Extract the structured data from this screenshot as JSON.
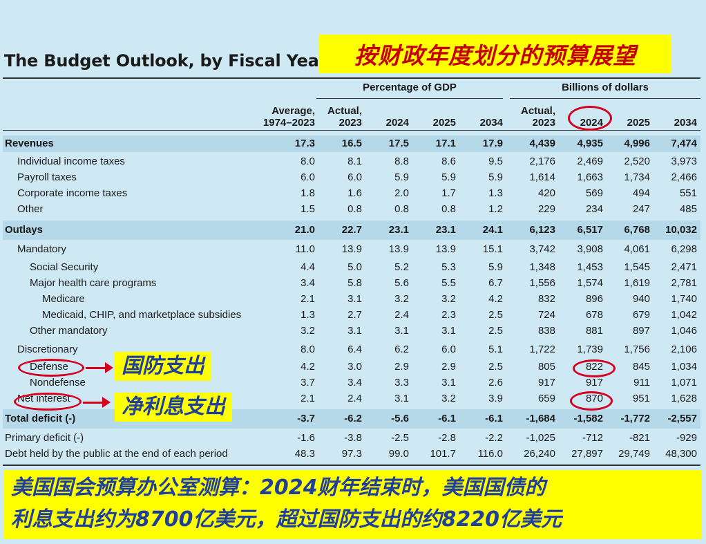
{
  "title": "The Budget Outlook, by Fiscal Year",
  "cn_title": "按财政年度划分的预算展望",
  "headers": {
    "group_gdp": "Percentage of GDP",
    "group_dollars": "Billions of dollars",
    "columns": [
      [
        "Average,",
        "1974–2023"
      ],
      [
        "Actual,",
        "2023"
      ],
      [
        "",
        "2024"
      ],
      [
        "",
        "2025"
      ],
      [
        "",
        "2034"
      ],
      [
        "Actual,",
        "2023"
      ],
      [
        "",
        "2024"
      ],
      [
        "",
        "2025"
      ],
      [
        "",
        "2034"
      ]
    ]
  },
  "rows": [
    {
      "label": "Revenues",
      "bold": true,
      "indent": 0,
      "values": [
        "17.3",
        "16.5",
        "17.5",
        "17.1",
        "17.9",
        "4,439",
        "4,935",
        "4,996",
        "7,474"
      ]
    },
    {
      "label": "Individual income taxes",
      "bold": false,
      "indent": 1,
      "values": [
        "8.0",
        "8.1",
        "8.8",
        "8.6",
        "9.5",
        "2,176",
        "2,469",
        "2,520",
        "3,973"
      ]
    },
    {
      "label": "Payroll taxes",
      "bold": false,
      "indent": 1,
      "values": [
        "6.0",
        "6.0",
        "5.9",
        "5.9",
        "5.9",
        "1,614",
        "1,663",
        "1,734",
        "2,466"
      ]
    },
    {
      "label": "Corporate income taxes",
      "bold": false,
      "indent": 1,
      "values": [
        "1.8",
        "1.6",
        "2.0",
        "1.7",
        "1.3",
        "420",
        "569",
        "494",
        "551"
      ]
    },
    {
      "label": "Other",
      "bold": false,
      "indent": 1,
      "values": [
        "1.5",
        "0.8",
        "0.8",
        "0.8",
        "1.2",
        "229",
        "234",
        "247",
        "485"
      ]
    },
    {
      "label": "Outlays",
      "bold": true,
      "indent": 0,
      "values": [
        "21.0",
        "22.7",
        "23.1",
        "23.1",
        "24.1",
        "6,123",
        "6,517",
        "6,768",
        "10,032"
      ]
    },
    {
      "label": "Mandatory",
      "bold": false,
      "indent": 1,
      "values": [
        "11.0",
        "13.9",
        "13.9",
        "13.9",
        "15.1",
        "3,742",
        "3,908",
        "4,061",
        "6,298"
      ]
    },
    {
      "label": "Social Security",
      "bold": false,
      "indent": 2,
      "values": [
        "4.4",
        "5.0",
        "5.2",
        "5.3",
        "5.9",
        "1,348",
        "1,453",
        "1,545",
        "2,471"
      ]
    },
    {
      "label": "Major health care programs",
      "bold": false,
      "indent": 2,
      "values": [
        "3.4",
        "5.8",
        "5.6",
        "5.5",
        "6.7",
        "1,556",
        "1,574",
        "1,619",
        "2,781"
      ]
    },
    {
      "label": "Medicare",
      "bold": false,
      "indent": 3,
      "values": [
        "2.1",
        "3.1",
        "3.2",
        "3.2",
        "4.2",
        "832",
        "896",
        "940",
        "1,740"
      ]
    },
    {
      "label": "Medicaid, CHIP, and marketplace subsidies",
      "bold": false,
      "indent": 3,
      "values": [
        "1.3",
        "2.7",
        "2.4",
        "2.3",
        "2.5",
        "724",
        "678",
        "679",
        "1,042"
      ]
    },
    {
      "label": "Other mandatory",
      "bold": false,
      "indent": 2,
      "values": [
        "3.2",
        "3.1",
        "3.1",
        "3.1",
        "2.5",
        "838",
        "881",
        "897",
        "1,046"
      ]
    },
    {
      "label": "Discretionary",
      "bold": false,
      "indent": 1,
      "values": [
        "8.0",
        "6.4",
        "6.2",
        "6.0",
        "5.1",
        "1,722",
        "1,739",
        "1,756",
        "2,106"
      ]
    },
    {
      "label": "Defense",
      "bold": false,
      "indent": 2,
      "values": [
        "4.2",
        "3.0",
        "2.9",
        "2.9",
        "2.5",
        "805",
        "822",
        "845",
        "1,034"
      ]
    },
    {
      "label": "Nondefense",
      "bold": false,
      "indent": 2,
      "values": [
        "3.7",
        "3.4",
        "3.3",
        "3.1",
        "2.6",
        "917",
        "917",
        "911",
        "1,071"
      ]
    },
    {
      "label": "Net interest",
      "bold": false,
      "indent": 1,
      "values": [
        "2.1",
        "2.4",
        "3.1",
        "3.2",
        "3.9",
        "659",
        "870",
        "951",
        "1,628"
      ]
    },
    {
      "label": "Total deficit (-)",
      "bold": true,
      "indent": 0,
      "values": [
        "-3.7",
        "-6.2",
        "-5.6",
        "-6.1",
        "-6.1",
        "-1,684",
        "-1,582",
        "-1,772",
        "-2,557"
      ]
    },
    {
      "label": "Primary deficit (-)",
      "bold": false,
      "indent": 0,
      "values": [
        "-1.6",
        "-3.8",
        "-2.5",
        "-2.8",
        "-2.2",
        "-1,025",
        "-712",
        "-821",
        "-929"
      ]
    },
    {
      "label": "Debt held by the public at the end of each period",
      "bold": false,
      "indent": 0,
      "values": [
        "48.3",
        "97.3",
        "99.0",
        "101.7",
        "116.0",
        "26,240",
        "27,897",
        "29,749",
        "48,300"
      ]
    }
  ],
  "annotations": {
    "defense_cn": "国防支出",
    "interest_cn": "净利息支出"
  },
  "footer": {
    "line1": "美国国会预算办公室测算：2024财年结束时，美国国债的",
    "line2": "利息支出约为8700亿美元，超过国防支出的约8220亿美元"
  },
  "colors": {
    "background": "#cfe9f4",
    "shade": "#b5d9e9",
    "highlight": "#ffff00",
    "annotation_red": "#d4001e",
    "annotation_blue": "#1f3f9c"
  }
}
